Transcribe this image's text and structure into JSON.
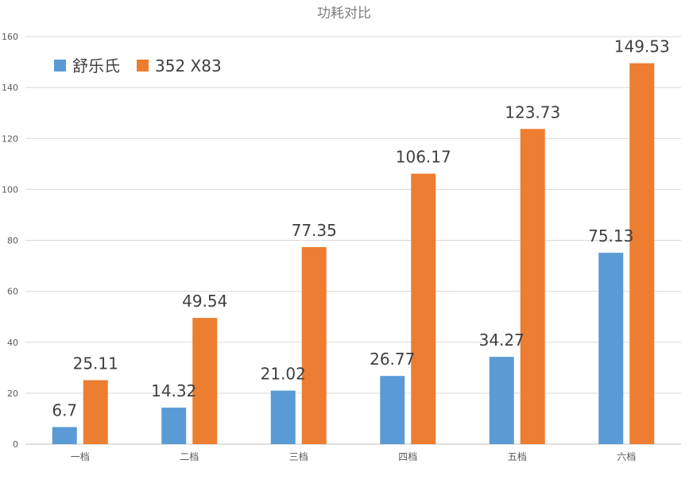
{
  "chart_data": {
    "type": "bar",
    "title": "功耗对比",
    "categories": [
      "一档",
      "二档",
      "三档",
      "四档",
      "五档",
      "六档"
    ],
    "series": [
      {
        "name": "舒乐氏",
        "color": "#5b9bd5",
        "values": [
          6.7,
          14.32,
          21.02,
          26.77,
          34.27,
          75.13
        ],
        "labels": [
          "6.7",
          "14.32",
          "21.02",
          "26.77",
          "34.27",
          "75.13"
        ]
      },
      {
        "name": "352 X83",
        "color": "#ed7d31",
        "values": [
          25.11,
          49.54,
          77.35,
          106.17,
          123.73,
          149.53
        ],
        "labels": [
          "25.11",
          "49.54",
          "77.35",
          "106.17",
          "123.73",
          "149.53"
        ]
      }
    ],
    "yticks": [
      "0",
      "20",
      "40",
      "60",
      "80",
      "100",
      "120",
      "140",
      "160"
    ],
    "ylim": [
      0,
      160
    ],
    "grid": true,
    "legend": "top-left",
    "xlabel": "",
    "ylabel": ""
  }
}
